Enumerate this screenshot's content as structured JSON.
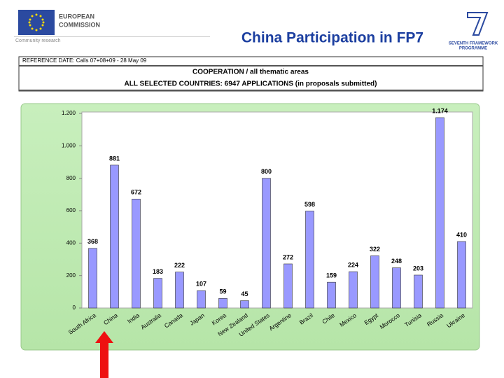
{
  "header": {
    "org_line1": "EUROPEAN",
    "org_line2": "COMMISSION",
    "org_sub": "Community research",
    "fp7_line1": "SEVENTH FRAMEWORK",
    "fp7_line2": "PROGRAMME",
    "reference": "REFERENCE DATE:  Calls 07+08+09 - 28 May 09",
    "scope": "COOPERATION  / all thematic areas",
    "countries": "ALL SELECTED COUNTRIES: 6947 APPLICATIONS (in proposals submitted)"
  },
  "chart_data": {
    "type": "bar",
    "title": "China Participation in FP7",
    "categories": [
      "South Africa",
      "China",
      "India",
      "Australia",
      "Canada",
      "Japan",
      "Korea",
      "New Zealand",
      "United States",
      "Argentine",
      "Brazil",
      "Chile",
      "Mexico",
      "Egypt",
      "Morocco",
      "Tunisia",
      "Russia",
      "Ukraine"
    ],
    "values": [
      368,
      881,
      672,
      183,
      222,
      107,
      59,
      45,
      800,
      272,
      598,
      159,
      224,
      322,
      248,
      203,
      1174,
      410
    ],
    "value_labels": [
      "368",
      "881",
      "672",
      "183",
      "222",
      "107",
      "59",
      "45",
      "800",
      "272",
      "598",
      "159",
      "224",
      "322",
      "248",
      "203",
      "1.174",
      "410"
    ],
    "color": "#9999ff",
    "ylim": [
      0,
      1200
    ],
    "yticks": [
      0,
      200,
      400,
      600,
      800,
      {
        "value": 1000,
        "label": "1.000"
      },
      {
        "value": 1200,
        "label": "1.200"
      }
    ],
    "grid": false
  }
}
